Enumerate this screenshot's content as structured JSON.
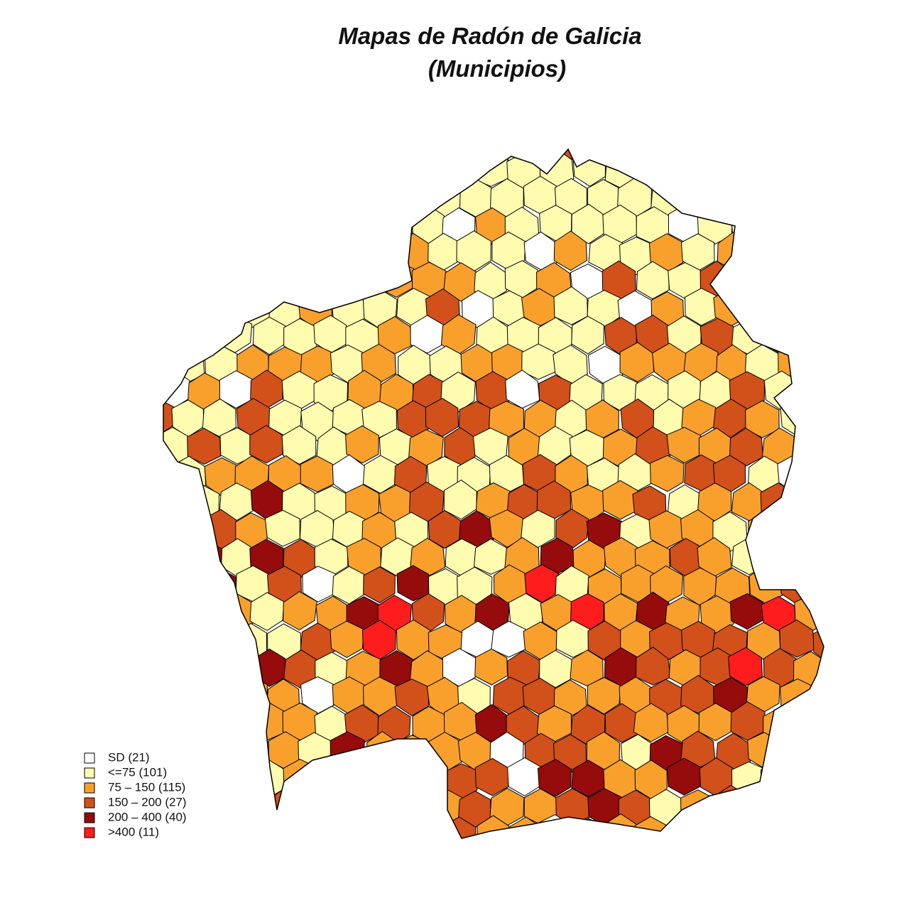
{
  "title": "Mapas de Radón de Galicia",
  "subtitle": "(Municipios)",
  "legend": [
    {
      "label": "SD (21)",
      "color": "#ffffff"
    },
    {
      "label": "<=75 (101)",
      "color": "#fffcb0"
    },
    {
      "label": "75 – 150 (115)",
      "color": "#f9a02c"
    },
    {
      "label": "150 – 200 (27)",
      "color": "#d2501a"
    },
    {
      "label": "200 – 400 (40)",
      "color": "#960b0b"
    },
    {
      "label": ">400 (11)",
      "color": "#ff1c1c"
    }
  ]
}
